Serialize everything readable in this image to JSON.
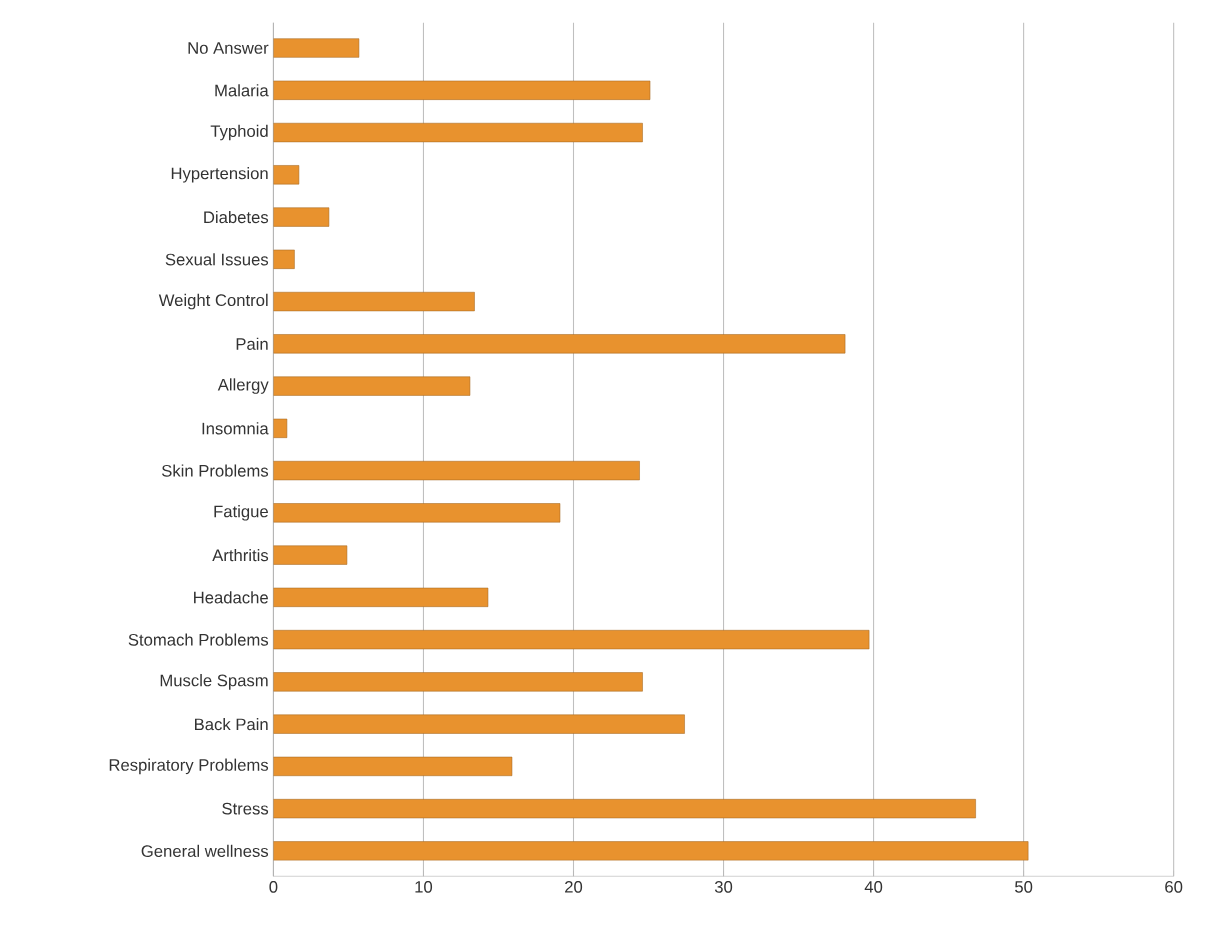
{
  "chart_data": {
    "type": "bar",
    "orientation": "horizontal",
    "categories": [
      "No Answer",
      "Malaria",
      "Typhoid",
      "Hypertension",
      "Diabetes",
      "Sexual Issues",
      "Weight Control",
      "Pain",
      "Allergy",
      "Insomnia",
      "Skin Problems",
      "Fatigue",
      "Arthritis",
      "Headache",
      "Stomach Problems",
      "Muscle Spasm",
      "Back Pain",
      "Respiratory Problems",
      "Stress",
      "General wellness"
    ],
    "values": [
      5.7,
      25.1,
      24.6,
      1.7,
      3.7,
      1.4,
      13.4,
      38.1,
      13.1,
      0.9,
      24.4,
      19.1,
      4.9,
      14.3,
      39.7,
      24.6,
      27.4,
      15.9,
      46.8,
      50.3
    ],
    "color": "#e8922e",
    "xlim": [
      0,
      60
    ],
    "xticks": [
      0,
      10,
      20,
      30,
      40,
      50,
      60
    ],
    "grid": "x"
  }
}
